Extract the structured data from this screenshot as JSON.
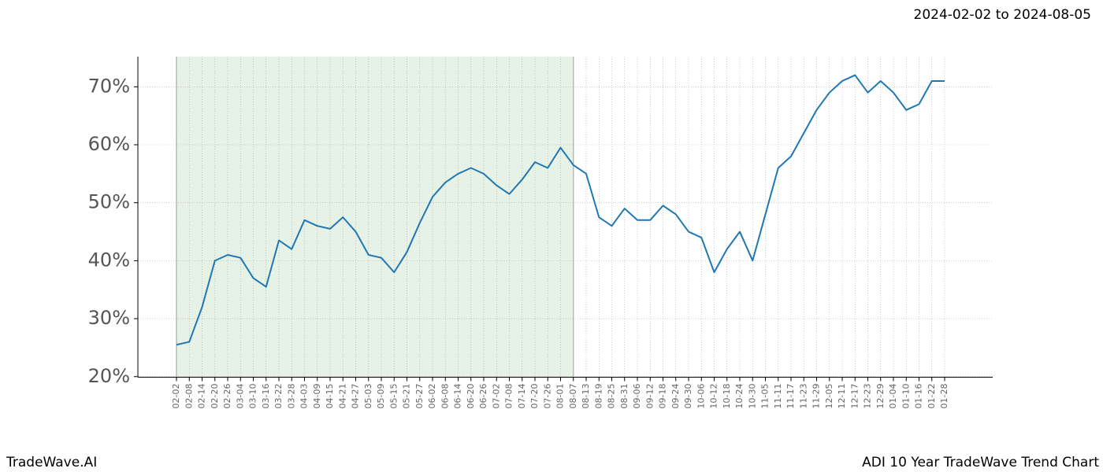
{
  "chart_data": {
    "type": "line",
    "date_range": "2024-02-02 to 2024-08-05",
    "brand": "TradeWave.AI",
    "title": "ADI 10 Year TradeWave Trend Chart",
    "categories": [
      "02-02",
      "02-08",
      "02-14",
      "02-20",
      "02-26",
      "03-04",
      "03-10",
      "03-16",
      "03-22",
      "03-28",
      "04-03",
      "04-09",
      "04-15",
      "04-21",
      "04-27",
      "05-03",
      "05-09",
      "05-15",
      "05-21",
      "05-27",
      "06-02",
      "06-08",
      "06-14",
      "06-20",
      "06-26",
      "07-02",
      "07-08",
      "07-14",
      "07-20",
      "07-26",
      "08-01",
      "08-07",
      "08-13",
      "08-19",
      "08-25",
      "08-31",
      "09-06",
      "09-12",
      "09-18",
      "09-24",
      "09-30",
      "10-06",
      "10-12",
      "10-18",
      "10-24",
      "10-30",
      "11-05",
      "11-11",
      "11-17",
      "11-23",
      "11-29",
      "12-05",
      "12-11",
      "12-17",
      "12-23",
      "12-29",
      "01-04",
      "01-10",
      "01-16",
      "01-22",
      "01-28"
    ],
    "values": [
      25.5,
      26,
      32,
      40,
      41,
      40.5,
      37,
      35.5,
      43.5,
      42,
      47,
      46,
      45.5,
      47.5,
      45,
      41,
      40.5,
      38,
      41.5,
      46.5,
      51,
      53.5,
      55,
      56,
      55,
      53,
      51.5,
      54,
      57,
      56,
      59.5,
      56.5,
      55,
      47.5,
      46,
      49,
      47,
      47,
      49.5,
      48,
      45,
      44,
      38,
      42,
      45,
      40,
      48,
      56,
      58,
      62,
      66,
      69,
      71,
      72,
      69,
      71,
      69,
      66,
      67,
      71,
      71
    ],
    "color": "#1f77b4",
    "highlight": {
      "from": "02-02",
      "to": "08-07",
      "color": "#e6f2e6"
    },
    "ylim": [
      19.9,
      75.2
    ],
    "yticks": [
      {
        "value": 20,
        "label": "20%"
      },
      {
        "value": 30,
        "label": "30%"
      },
      {
        "value": 40,
        "label": "40%"
      },
      {
        "value": 50,
        "label": "50%"
      },
      {
        "value": 60,
        "label": "60%"
      },
      {
        "value": 70,
        "label": "70%"
      }
    ],
    "grid": true
  }
}
